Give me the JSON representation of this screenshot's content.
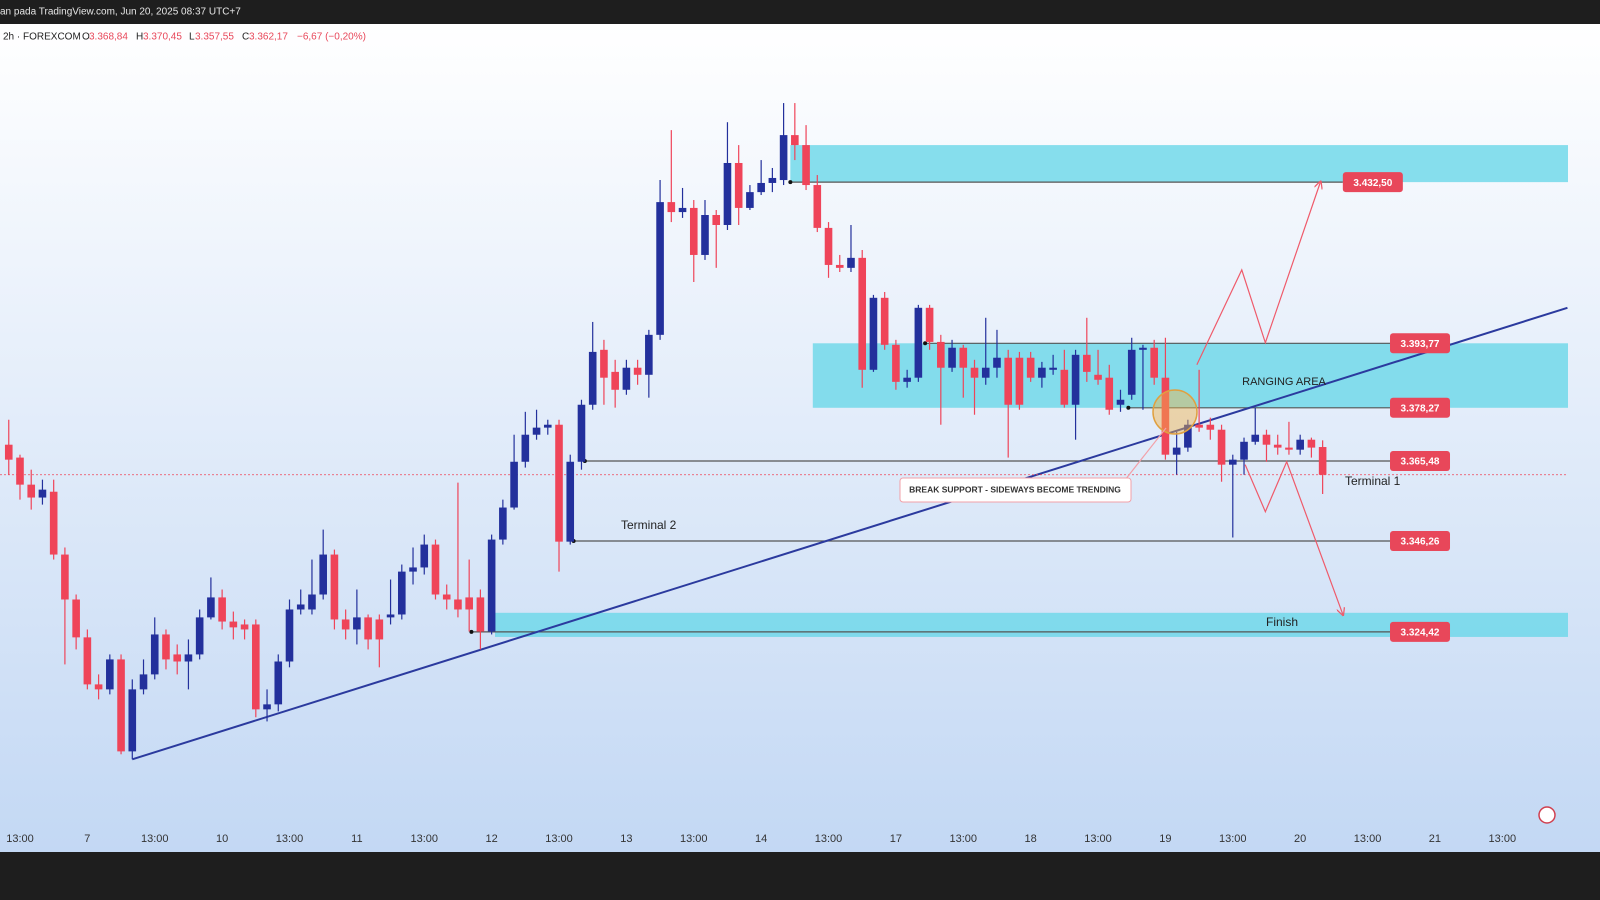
{
  "header": {
    "source": "an pada TradingView.com, Jun 20, 2025 08:37 UTC+7",
    "symbol": "2h · FOREXCOM",
    "open_label": "O",
    "open": "3.368,84",
    "high_label": "H",
    "high": "3.370,45",
    "low_label": "L",
    "low": "3.357,55",
    "close_label": "C",
    "close": "3.362,17",
    "change": "−6,67 (−0,20%)"
  },
  "chart_data": {
    "type": "candlestick",
    "up_color": "#23309c",
    "down_color": "#ef4459",
    "xlim": [
      -0.78,
      138.85
    ],
    "ylim": [
      3272.0,
      3470.5
    ],
    "last_price_line": true,
    "categories": [
      null,
      "13:00",
      null,
      null,
      null,
      null,
      null,
      "7",
      null,
      null,
      null,
      null,
      null,
      "13:00",
      null,
      null,
      null,
      null,
      null,
      "10",
      null,
      null,
      null,
      null,
      null,
      "13:00",
      null,
      null,
      null,
      null,
      null,
      "11",
      null,
      null,
      null,
      null,
      null,
      "13:00",
      null,
      null,
      null,
      null,
      null,
      "12",
      null,
      null,
      null,
      null,
      null,
      "13:00",
      null,
      null,
      null,
      null,
      null,
      "13",
      null,
      null,
      null,
      null,
      null,
      "13:00",
      null,
      null,
      null,
      null,
      null,
      "14",
      null,
      null,
      null,
      null,
      null,
      "13:00",
      null,
      null,
      null,
      null,
      null,
      "17",
      null,
      null,
      null,
      null,
      null,
      "13:00",
      null,
      null,
      null,
      null,
      null,
      "18",
      null,
      null,
      null,
      null,
      null,
      "13:00",
      null,
      null,
      null,
      null,
      null,
      "19",
      null,
      null,
      null,
      null,
      null,
      "13:00",
      null,
      null,
      null,
      null,
      null,
      "20",
      null,
      null,
      null,
      null,
      null,
      "13:00",
      null,
      null,
      null,
      null,
      null,
      "21",
      null,
      null,
      null,
      null,
      null,
      "13:00"
    ],
    "open": [
      3369.4,
      3366.3,
      3359.8,
      3356.7,
      3358.1,
      3343.0,
      3332.2,
      3323.1,
      3311.8,
      3310.6,
      3317.8,
      3295.7,
      3310.6,
      3314.2,
      3323.8,
      3319.0,
      3317.3,
      3319.0,
      3327.9,
      3332.7,
      3326.9,
      3326.2,
      3326.2,
      3305.8,
      3307.0,
      3317.3,
      3329.8,
      3329.8,
      3333.4,
      3343.0,
      3327.4,
      3325.0,
      3327.9,
      3327.4,
      3327.9,
      3328.6,
      3338.9,
      3339.9,
      3345.4,
      3333.4,
      3332.2,
      3332.7,
      3332.7,
      3324.5,
      3346.6,
      3354.3,
      3365.3,
      3371.8,
      3373.5,
      3374.2,
      3346.1,
      3365.3,
      3379.0,
      3392.2,
      3386.9,
      3382.6,
      3387.9,
      3386.2,
      3395.8,
      3427.7,
      3425.3,
      3426.3,
      3415.0,
      3424.6,
      3422.2,
      3437.1,
      3426.3,
      3430.1,
      3432.3,
      3433.0,
      3443.8,
      3441.4,
      3431.8,
      3421.5,
      3412.6,
      3411.9,
      3414.3,
      3387.4,
      3404.7,
      3393.4,
      3384.5,
      3385.5,
      3402.3,
      3394.1,
      3387.9,
      3392.7,
      3387.9,
      3385.5,
      3387.9,
      3390.3,
      3390.3,
      3390.3,
      3385.5,
      3387.4,
      3387.4,
      3379.0,
      3391.0,
      3386.2,
      3385.5,
      3379.0,
      3381.4,
      3392.2,
      3392.7,
      3385.5,
      3367.0,
      3368.7,
      3374.2,
      3374.2,
      3373.0,
      3364.6,
      3365.8,
      3370.1,
      3371.8,
      3369.4,
      3368.7,
      3368.2,
      3370.6,
      3368.84,
      null,
      null,
      null,
      null,
      null,
      null,
      null,
      null,
      null,
      null,
      null,
      null,
      null,
      null,
      null,
      null
    ],
    "high": [
      3375.4,
      3367.0,
      3363.4,
      3361.0,
      3361.0,
      3344.7,
      3333.4,
      3325.0,
      3314.2,
      3319.0,
      3319.0,
      3313.0,
      3317.8,
      3327.9,
      3325.0,
      3321.4,
      3322.6,
      3329.8,
      3337.5,
      3334.6,
      3329.3,
      3327.4,
      3327.4,
      3310.6,
      3319.0,
      3332.2,
      3334.6,
      3341.8,
      3349.0,
      3344.2,
      3329.8,
      3334.6,
      3328.6,
      3328.6,
      3337.0,
      3340.6,
      3344.7,
      3347.8,
      3346.6,
      3335.8,
      3360.3,
      3341.8,
      3334.6,
      3347.8,
      3356.2,
      3371.8,
      3377.3,
      3377.8,
      3375.4,
      3375.4,
      3367.0,
      3380.2,
      3398.9,
      3394.6,
      3389.8,
      3389.8,
      3389.8,
      3397.0,
      3433.0,
      3445.0,
      3431.1,
      3428.2,
      3428.2,
      3425.8,
      3446.9,
      3441.4,
      3431.8,
      3437.8,
      3435.9,
      3451.5,
      3451.5,
      3446.2,
      3434.2,
      3422.9,
      3415.0,
      3422.2,
      3416.2,
      3405.4,
      3406.1,
      3394.6,
      3387.4,
      3403.0,
      3403.0,
      3395.8,
      3394.6,
      3393.4,
      3389.8,
      3399.9,
      3397.0,
      3392.2,
      3391.7,
      3391.7,
      3389.3,
      3391.0,
      3392.2,
      3392.2,
      3399.9,
      3392.2,
      3388.6,
      3382.6,
      3395.1,
      3393.4,
      3394.6,
      3395.1,
      3372.5,
      3375.4,
      3387.4,
      3375.9,
      3374.2,
      3367.0,
      3371.1,
      3378.3,
      3373.0,
      3371.8,
      3374.9,
      3371.8,
      3371.1,
      3370.45,
      null,
      null,
      null,
      null,
      null,
      null,
      null,
      null,
      null,
      null,
      null,
      null,
      null,
      null,
      null,
      null
    ],
    "low": [
      3362.2,
      3356.2,
      3353.8,
      3355.0,
      3341.8,
      3316.6,
      3320.2,
      3310.6,
      3308.2,
      3309.4,
      3295.0,
      3293.8,
      3309.4,
      3313.0,
      3315.4,
      3314.2,
      3310.6,
      3317.8,
      3327.4,
      3325.0,
      3322.6,
      3322.6,
      3303.9,
      3302.9,
      3305.3,
      3315.9,
      3328.6,
      3328.6,
      3332.2,
      3325.0,
      3322.6,
      3321.4,
      3320.2,
      3315.9,
      3326.2,
      3327.4,
      3335.8,
      3338.2,
      3332.2,
      3329.8,
      3327.9,
      3324.5,
      3320.2,
      3323.8,
      3345.4,
      3353.8,
      3363.9,
      3370.6,
      3371.8,
      3338.9,
      3345.4,
      3363.4,
      3377.8,
      3379.0,
      3378.3,
      3381.4,
      3383.8,
      3380.7,
      3394.6,
      3422.9,
      3423.9,
      3408.5,
      3413.8,
      3411.9,
      3421.0,
      3422.2,
      3425.8,
      3429.4,
      3430.1,
      3431.8,
      3437.8,
      3430.6,
      3420.5,
      3409.5,
      3410.9,
      3410.9,
      3383.1,
      3386.9,
      3392.2,
      3382.6,
      3383.1,
      3384.5,
      3392.2,
      3374.2,
      3386.9,
      3380.7,
      3376.6,
      3383.8,
      3385.5,
      3366.3,
      3377.8,
      3384.5,
      3383.1,
      3386.2,
      3378.3,
      3370.6,
      3384.5,
      3383.8,
      3376.6,
      3377.3,
      3380.2,
      3377.8,
      3383.8,
      3365.8,
      3362.2,
      3367.7,
      3372.5,
      3370.6,
      3360.5,
      3347.1,
      3362.2,
      3369.4,
      3365.3,
      3367.0,
      3367.0,
      3367.0,
      3366.3,
      3357.55,
      null,
      null,
      null,
      null,
      null,
      null,
      null,
      null,
      null,
      null,
      null,
      null,
      null,
      null,
      null,
      null
    ],
    "close": [
      3365.8,
      3359.8,
      3356.7,
      3358.6,
      3343.0,
      3332.2,
      3323.1,
      3311.8,
      3310.6,
      3317.8,
      3295.7,
      3310.6,
      3314.2,
      3323.8,
      3317.8,
      3317.3,
      3319.0,
      3327.9,
      3332.7,
      3326.9,
      3325.5,
      3325.0,
      3305.8,
      3307.0,
      3317.3,
      3329.8,
      3331.0,
      3333.4,
      3343.0,
      3327.4,
      3325.0,
      3327.9,
      3322.6,
      3322.6,
      3328.6,
      3338.9,
      3339.9,
      3345.4,
      3333.4,
      3332.2,
      3329.8,
      3329.8,
      3324.5,
      3346.6,
      3354.3,
      3365.3,
      3371.8,
      3373.5,
      3374.2,
      3346.1,
      3365.3,
      3379.0,
      3391.7,
      3385.5,
      3382.6,
      3387.9,
      3386.2,
      3395.8,
      3427.7,
      3425.3,
      3426.3,
      3415.0,
      3424.6,
      3422.2,
      3437.1,
      3426.3,
      3430.1,
      3432.3,
      3433.5,
      3443.8,
      3441.4,
      3431.8,
      3421.5,
      3412.6,
      3411.9,
      3414.3,
      3387.4,
      3404.7,
      3393.4,
      3384.5,
      3385.5,
      3402.3,
      3394.1,
      3387.9,
      3392.7,
      3387.9,
      3385.5,
      3387.9,
      3390.3,
      3379.0,
      3379.0,
      3385.5,
      3387.9,
      3387.9,
      3379.0,
      3391.0,
      3386.9,
      3385.0,
      3377.8,
      3380.2,
      3392.2,
      3392.7,
      3385.5,
      3367.0,
      3368.7,
      3374.2,
      3373.5,
      3373.0,
      3364.6,
      3365.8,
      3370.1,
      3371.8,
      3369.4,
      3368.7,
      3368.2,
      3370.6,
      3368.7,
      3362.17,
      null,
      null,
      null,
      null,
      null,
      null,
      null,
      null,
      null,
      null,
      null,
      null,
      null,
      null,
      null,
      null
    ],
    "zone_color": "#6ad7e9",
    "zones": [
      {
        "from": 69.6,
        "top": 3441.4,
        "bottom": 3432.5
      },
      {
        "from": 71.6,
        "top": 3393.77,
        "bottom": 3378.27
      },
      {
        "from": 43.3,
        "top": 3329.0,
        "bottom": 3323.2
      }
    ],
    "level_color": "#555555",
    "label_color": "#e8475a",
    "levels": [
      {
        "value": 3432.5,
        "label": "3.432,50",
        "from": 69.6,
        "to": 118.8
      },
      {
        "value": 3393.77,
        "label": "3.393,77",
        "from": 81.6,
        "to": 123.0
      },
      {
        "value": 3378.27,
        "label": "3.378,27",
        "from": 99.7,
        "to": 123.0
      },
      {
        "value": 3365.48,
        "label": "3.365,48",
        "from": 51.3,
        "to": 123.0
      },
      {
        "value": 3346.26,
        "label": "3.346,26",
        "from": 50.3,
        "to": 123.0
      },
      {
        "value": 3324.42,
        "label": "3.324,42",
        "from": 41.2,
        "to": 123.0
      }
    ],
    "trendline": {
      "color": "#2b3a9e",
      "x": [
        11,
        138.8
      ],
      "y": [
        3293.8,
        3402.3
      ]
    },
    "projection_color": "#ef5a6a",
    "projections": [
      {
        "x": [
          105.8,
          109.8,
          111.9,
          116.8
        ],
        "y": [
          3388.6,
          3411.4,
          3393.9,
          3432.5
        ]
      },
      {
        "x": [
          110.1,
          111.9,
          113.8,
          118.8
        ],
        "y": [
          3364.6,
          3353.3,
          3365.3,
          3328.6
        ]
      }
    ],
    "annotations": {
      "break_support": "BREAK SUPPORT - SIDEWAYS BECOME TRENDING",
      "ranging_area": "RANGING AREA",
      "terminal_1": "Terminal 1",
      "terminal_2": "Terminal 2",
      "finish": "Finish"
    }
  }
}
